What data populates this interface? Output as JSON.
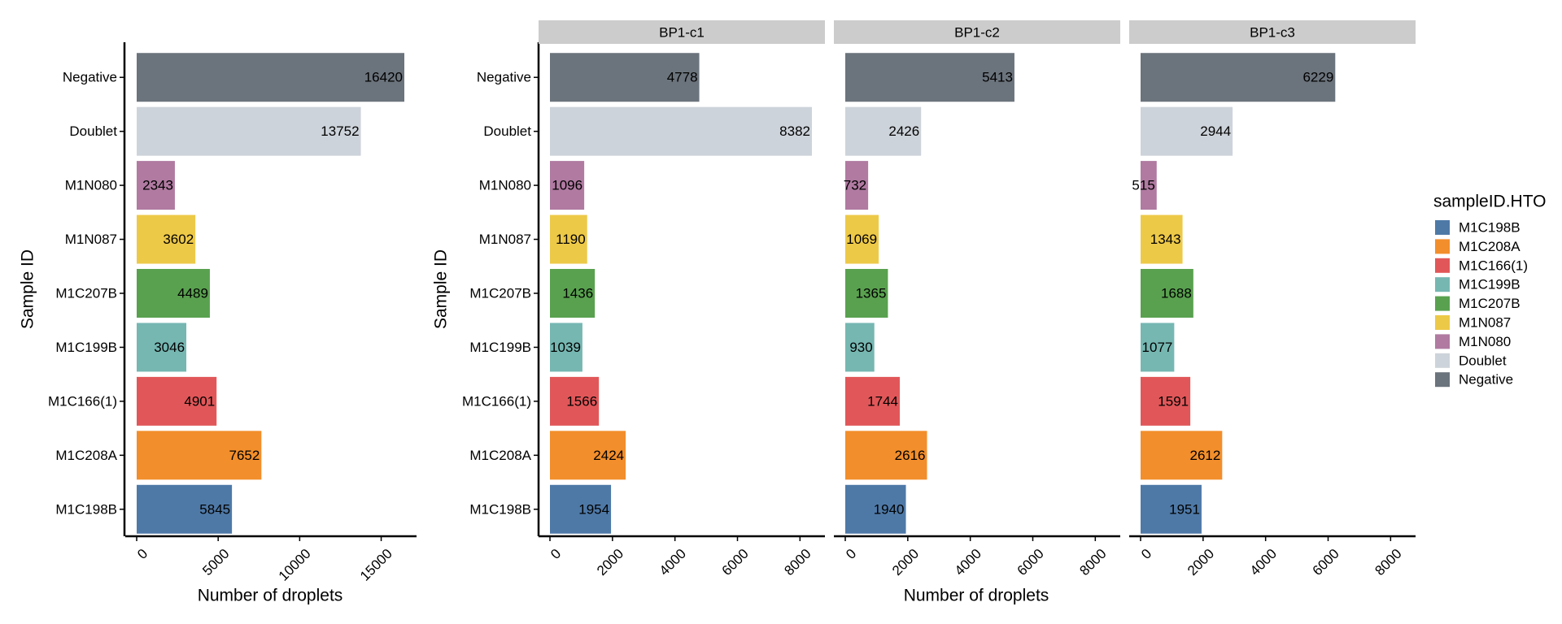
{
  "chart_data": [
    {
      "type": "bar",
      "orientation": "horizontal",
      "categories": [
        "M1C198B",
        "M1C208A",
        "M1C166(1)",
        "M1C199B",
        "M1C207B",
        "M1N087",
        "M1N080",
        "Doublet",
        "Negative"
      ],
      "values": [
        5845,
        7652,
        4901,
        3046,
        4489,
        3602,
        2343,
        13752,
        16420
      ],
      "xlabel": "Number of droplets",
      "ylabel": "Sample ID",
      "xlim": [
        0,
        17200
      ],
      "xticks": [
        0,
        5000,
        10000,
        15000
      ],
      "grid": false
    },
    {
      "type": "bar",
      "orientation": "horizontal",
      "categories": [
        "M1C198B",
        "M1C208A",
        "M1C166(1)",
        "M1C199B",
        "M1C207B",
        "M1N087",
        "M1N080",
        "Doublet",
        "Negative"
      ],
      "xlabel": "Number of droplets",
      "ylabel": "Sample ID",
      "xlim": [
        0,
        8800
      ],
      "xticks": [
        0,
        2000,
        4000,
        6000,
        8000
      ],
      "grid": false,
      "panels": [
        {
          "label": "BP1-c1",
          "values": [
            1954,
            2424,
            1566,
            1039,
            1436,
            1190,
            1096,
            8382,
            4778
          ]
        },
        {
          "label": "BP1-c2",
          "values": [
            1940,
            2616,
            1744,
            930,
            1365,
            1069,
            732,
            2426,
            5413
          ]
        },
        {
          "label": "BP1-c3",
          "values": [
            1951,
            2612,
            1591,
            1077,
            1688,
            1343,
            515,
            2944,
            6229
          ]
        }
      ]
    }
  ],
  "legend": {
    "title": "sampleID.HTO",
    "placement": "right",
    "items": [
      {
        "label": "M1C198B",
        "color": "#4e79a7"
      },
      {
        "label": "M1C208A",
        "color": "#f28e2b"
      },
      {
        "label": "M1C166(1)",
        "color": "#e15759"
      },
      {
        "label": "M1C199B",
        "color": "#76b7b2"
      },
      {
        "label": "M1C207B",
        "color": "#59a14f"
      },
      {
        "label": "M1N087",
        "color": "#edc948"
      },
      {
        "label": "M1N080",
        "color": "#b07aa1"
      },
      {
        "label": "Doublet",
        "color": "#cdd3da"
      },
      {
        "label": "Negative",
        "color": "#6b737c"
      }
    ]
  },
  "colors": {
    "strip_background": "#cccccc",
    "axis": "#000000"
  }
}
